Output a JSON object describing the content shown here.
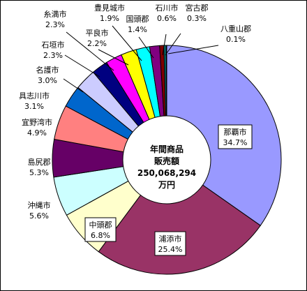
{
  "chart_data": {
    "type": "pie",
    "title": "",
    "center_label": {
      "line1": "年間商品",
      "line2": "販売額",
      "line3": "250,068,294",
      "line4": "万円"
    },
    "start_angle_deg": 0,
    "direction": "clockwise",
    "slices": [
      {
        "name": "那覇市",
        "value": 34.7,
        "label": "34.7%",
        "color": "#9999FF"
      },
      {
        "name": "浦添市",
        "value": 25.4,
        "label": "25.4%",
        "color": "#993366"
      },
      {
        "name": "中頭郡",
        "value": 6.8,
        "label": "6.8%",
        "color": "#FFFFCC"
      },
      {
        "name": "沖縄市",
        "value": 5.6,
        "label": "5.6%",
        "color": "#CCFFFF"
      },
      {
        "name": "島尻郡",
        "value": 5.3,
        "label": "5.3%",
        "color": "#660066"
      },
      {
        "name": "宜野湾市",
        "value": 4.9,
        "label": "4.9%",
        "color": "#FF8080"
      },
      {
        "name": "具志川市",
        "value": 3.1,
        "label": "3.1%",
        "color": "#0066CC"
      },
      {
        "name": "名護市",
        "value": 3.0,
        "label": "3.0%",
        "color": "#CCCCFF"
      },
      {
        "name": "石垣市",
        "value": 2.3,
        "label": "2.3%",
        "color": "#000080"
      },
      {
        "name": "糸満市",
        "value": 2.3,
        "label": "2.3%",
        "color": "#FF00FF"
      },
      {
        "name": "平良市",
        "value": 2.2,
        "label": "2.2%",
        "color": "#FFFF00"
      },
      {
        "name": "豊見城市",
        "value": 1.9,
        "label": "1.9%",
        "color": "#00FFFF"
      },
      {
        "name": "国頭郡",
        "value": 1.4,
        "label": "1.4%",
        "color": "#800080"
      },
      {
        "name": "石川市",
        "value": 0.6,
        "label": "0.6%",
        "color": "#800000"
      },
      {
        "name": "宮古郡",
        "value": 0.3,
        "label": "0.3%",
        "color": "#008080"
      },
      {
        "name": "八重山郡",
        "value": 0.1,
        "label": "0.1%",
        "color": "#0000FF"
      }
    ]
  }
}
